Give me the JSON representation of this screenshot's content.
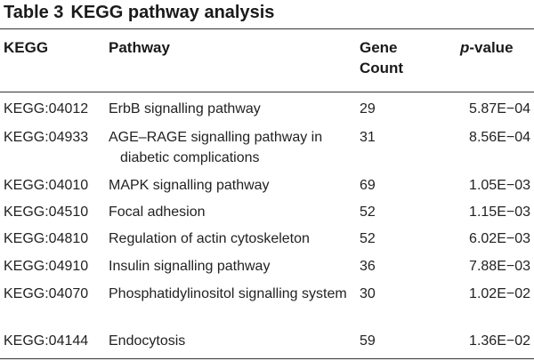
{
  "caption": {
    "label": "Table 3",
    "title": "KEGG pathway analysis"
  },
  "columns": {
    "kegg": "KEGG",
    "pathway": "Pathway",
    "gene_count": "Gene Count",
    "p_value_italic": "p",
    "p_value_rest": "-value"
  },
  "rows": [
    {
      "kegg": "KEGG:04012",
      "pathway": "ErbB signalling pathway",
      "gene_count": "29",
      "p_value": "5.87E−04"
    },
    {
      "kegg": "KEGG:04933",
      "pathway": "AGE–RAGE signalling pathway in diabetic complications",
      "gene_count": "31",
      "p_value": "8.56E−04"
    },
    {
      "kegg": "KEGG:04010",
      "pathway": "MAPK signalling pathway",
      "gene_count": "69",
      "p_value": "1.05E−03"
    },
    {
      "kegg": "KEGG:04510",
      "pathway": "Focal adhesion",
      "gene_count": "52",
      "p_value": "1.15E−03"
    },
    {
      "kegg": "KEGG:04810",
      "pathway": "Regulation of actin cytoskeleton",
      "gene_count": "52",
      "p_value": "6.02E−03"
    },
    {
      "kegg": "KEGG:04910",
      "pathway": "Insulin signalling pathway",
      "gene_count": "36",
      "p_value": "7.88E−03"
    },
    {
      "kegg": "KEGG:04070",
      "pathway": "Phosphatidylinositol signalling system",
      "gene_count": "30",
      "p_value": "1.02E−02"
    },
    {
      "kegg": "KEGG:04144",
      "pathway": "Endocytosis",
      "gene_count": "59",
      "p_value": "1.36E−02"
    }
  ]
}
